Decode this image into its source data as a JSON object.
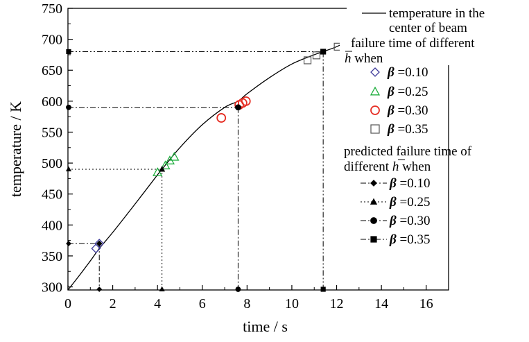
{
  "chart_data": {
    "type": "scatter",
    "xlabel": "time / s",
    "ylabel": "temperature / K",
    "xlim": [
      0,
      17
    ],
    "ylim": [
      295,
      750
    ],
    "xticks": [
      0,
      2,
      4,
      6,
      8,
      10,
      12,
      14,
      16
    ],
    "yticks": [
      300,
      350,
      400,
      450,
      500,
      550,
      600,
      650,
      700,
      750
    ],
    "grid": false,
    "legend_position": "top-right",
    "curve": {
      "name": "temperature in the center of beam",
      "color": "#000000",
      "x": [
        0,
        0.5,
        1,
        1.4,
        2,
        3,
        4,
        4.2,
        5,
        6,
        7,
        7.6,
        8,
        9,
        10,
        11,
        11.4,
        12,
        12.5
      ],
      "y": [
        295,
        318,
        342,
        362,
        388,
        434,
        481,
        490,
        525,
        562,
        590,
        600,
        612,
        638,
        660,
        675,
        680,
        688,
        697
      ]
    },
    "failure_series": [
      {
        "beta": "=0.10",
        "marker": "diamond",
        "color": "#3d3a9a",
        "x": [
          1.25,
          1.4
        ],
        "y": [
          362,
          370
        ]
      },
      {
        "beta": "=0.25",
        "marker": "triangle",
        "color": "#1fae3e",
        "x": [
          4.0,
          4.35,
          4.55,
          4.75
        ],
        "y": [
          485,
          496,
          504,
          510
        ]
      },
      {
        "beta": "=0.30",
        "marker": "circle",
        "color": "#e62e24",
        "x": [
          6.85,
          7.65,
          7.8,
          7.95
        ],
        "y": [
          573,
          594,
          597,
          600
        ]
      },
      {
        "beta": "=0.35",
        "marker": "square",
        "color": "#555555",
        "x": [
          10.7,
          11.1,
          12.05
        ],
        "y": [
          666,
          674,
          688
        ]
      }
    ],
    "predicted_series": [
      {
        "beta": "=0.10",
        "marker": "diamond",
        "line": "dashdot",
        "x": 1.4,
        "y": 370
      },
      {
        "beta": "=0.25",
        "marker": "triangle",
        "line": "dotted",
        "x": 4.2,
        "y": 490
      },
      {
        "beta": "=0.30",
        "marker": "circle",
        "line": "dashdot",
        "x": 7.6,
        "y": 590
      },
      {
        "beta": "=0.35",
        "marker": "square",
        "line": "dashdotdot",
        "x": 11.4,
        "y": 680
      }
    ],
    "legend": {
      "curve_label_line1": "temperature in the",
      "curve_label_line2": "center of beam",
      "failure_header_line1": "failure time of different",
      "failure_header_h": "h",
      "failure_header_line2_rest": " when",
      "predicted_header_line1": "predicted failure time of",
      "predicted_header_line2_pre": "different ",
      "predicted_header_h": "h",
      "predicted_header_line2_post": " when",
      "beta_symbol": "β"
    }
  }
}
